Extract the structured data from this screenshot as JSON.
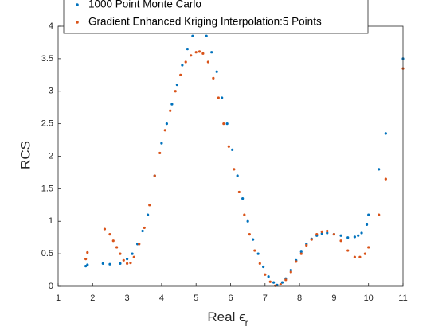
{
  "chart_data": {
    "type": "scatter",
    "xlabel": "Real ϵ",
    "xlabel_sub": "r",
    "ylabel": "RCS",
    "xlim": [
      1,
      11
    ],
    "xticks": [
      1,
      2,
      3,
      4,
      5,
      6,
      7,
      8,
      9,
      10,
      11
    ],
    "ylim": [
      0,
      4
    ],
    "yticks": [
      0,
      0.5,
      1,
      1.5,
      2,
      2.5,
      3,
      3.5,
      4
    ],
    "legend": "top",
    "box": true,
    "series": [
      {
        "name": "1000 Point Monte Carlo",
        "color": "#0072BD",
        "x": [
          1.8,
          1.85,
          2.3,
          2.5,
          2.8,
          3.0,
          3.15,
          3.3,
          3.45,
          3.6,
          3.8,
          4.0,
          4.15,
          4.3,
          4.45,
          4.6,
          4.75,
          4.9,
          5.0,
          5.1,
          5.2,
          5.3,
          5.45,
          5.6,
          5.75,
          5.9,
          6.05,
          6.2,
          6.35,
          6.5,
          6.65,
          6.8,
          6.95,
          7.1,
          7.25,
          7.35,
          7.5,
          7.6,
          7.75,
          7.9,
          8.05,
          8.2,
          8.35,
          8.5,
          8.65,
          8.8,
          9.0,
          9.2,
          9.4,
          9.6,
          9.7,
          9.8,
          9.95,
          10.0,
          10.3,
          10.5,
          11.0
        ],
        "values": [
          0.31,
          0.33,
          0.35,
          0.34,
          0.35,
          0.42,
          0.5,
          0.65,
          0.85,
          1.1,
          1.7,
          2.2,
          2.5,
          2.8,
          3.1,
          3.4,
          3.65,
          3.85,
          3.95,
          4.0,
          3.97,
          3.85,
          3.6,
          3.3,
          2.9,
          2.5,
          2.1,
          1.7,
          1.35,
          1.0,
          0.72,
          0.5,
          0.3,
          0.15,
          0.06,
          0.02,
          0.06,
          0.12,
          0.25,
          0.4,
          0.53,
          0.65,
          0.73,
          0.78,
          0.81,
          0.82,
          0.8,
          0.78,
          0.75,
          0.76,
          0.78,
          0.82,
          0.95,
          1.1,
          1.8,
          2.35,
          3.5
        ]
      },
      {
        "name": "Gradient Enhanced Kriging Interpolation:5 Points",
        "color": "#D95319",
        "x": [
          1.8,
          1.85,
          2.35,
          2.5,
          2.6,
          2.7,
          2.8,
          2.9,
          3.0,
          3.1,
          3.2,
          3.35,
          3.5,
          3.65,
          3.8,
          3.95,
          4.1,
          4.25,
          4.4,
          4.55,
          4.7,
          4.85,
          5.0,
          5.1,
          5.2,
          5.35,
          5.5,
          5.65,
          5.8,
          5.95,
          6.1,
          6.25,
          6.4,
          6.55,
          6.7,
          6.85,
          7.0,
          7.15,
          7.3,
          7.45,
          7.6,
          7.75,
          7.9,
          8.05,
          8.2,
          8.35,
          8.5,
          8.65,
          8.8,
          9.0,
          9.2,
          9.4,
          9.6,
          9.75,
          9.9,
          10.0,
          10.3,
          10.5,
          11.0
        ],
        "values": [
          0.42,
          0.52,
          0.88,
          0.8,
          0.7,
          0.6,
          0.5,
          0.4,
          0.35,
          0.36,
          0.45,
          0.65,
          0.9,
          1.25,
          1.7,
          2.05,
          2.4,
          2.7,
          3.0,
          3.25,
          3.45,
          3.55,
          3.6,
          3.61,
          3.58,
          3.45,
          3.2,
          2.9,
          2.5,
          2.15,
          1.8,
          1.45,
          1.1,
          0.8,
          0.55,
          0.35,
          0.18,
          0.07,
          0.01,
          0.03,
          0.1,
          0.22,
          0.38,
          0.5,
          0.63,
          0.72,
          0.8,
          0.84,
          0.85,
          0.8,
          0.7,
          0.55,
          0.45,
          0.45,
          0.5,
          0.6,
          1.1,
          1.65,
          3.35
        ]
      }
    ]
  }
}
